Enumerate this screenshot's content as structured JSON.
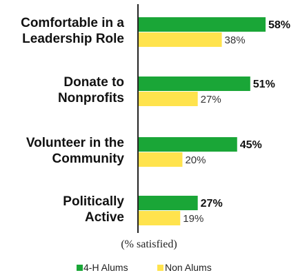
{
  "chart_data": {
    "type": "bar",
    "orientation": "horizontal",
    "categories": [
      [
        "Comfortable in a",
        "Leadership Role"
      ],
      [
        "Donate to",
        "Nonprofits"
      ],
      [
        "Volunteer in the",
        "Community"
      ],
      [
        "Politically",
        "Active"
      ]
    ],
    "series": [
      {
        "name": "4-H Alums",
        "color": "#1aa637",
        "values": [
          58,
          51,
          45,
          27
        ],
        "labels": [
          "58%",
          "51%",
          "45%",
          "27%"
        ]
      },
      {
        "name": "Non Alums",
        "color": "#ffe34d",
        "values": [
          38,
          27,
          20,
          19
        ],
        "labels": [
          "38%",
          "27%",
          "20%",
          "19%"
        ]
      }
    ],
    "unit_label": "(% satisfied)",
    "xlim": [
      0,
      60
    ],
    "grid": false,
    "legend": "bottom"
  }
}
